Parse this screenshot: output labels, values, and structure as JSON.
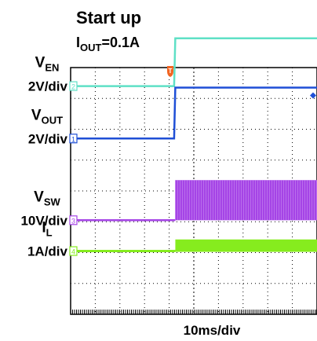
{
  "title": "Start up",
  "subtitle": {
    "main": "I",
    "sub": "OUT",
    "rest": "=0.1A"
  },
  "xlabel": "10ms/div",
  "trigger_marker": "T",
  "colors": {
    "background": "#ffffff",
    "grid": "#000000",
    "ven": "#5fe0c6",
    "vout": "#1f4fd6",
    "vsw": "#a544e6",
    "il": "#86ec1e"
  },
  "chart_data": {
    "type": "line",
    "title": "Start up",
    "x_division": "10ms/div",
    "x_divisions": 10,
    "y_divisions": 8,
    "grid": true,
    "x": [
      0,
      4.2,
      4.25,
      10
    ],
    "series": [
      {
        "id": "ven",
        "label_main": "V",
        "label_sub": "EN",
        "scale": "2V/div",
        "channel": "2",
        "color": "#5fe0c6",
        "offset_div": 3.4,
        "values_div": [
          0,
          0,
          1.55,
          1.55
        ]
      },
      {
        "id": "vout",
        "label_main": "V",
        "label_sub": "OUT",
        "scale": "2V/div",
        "channel": "1",
        "color": "#1f4fd6",
        "offset_div": 1.7,
        "values_div": [
          0,
          0,
          1.65,
          1.65
        ]
      },
      {
        "id": "vsw",
        "label_main": "V",
        "label_sub": "SW",
        "scale": "10V/div",
        "channel": "3",
        "color": "#a544e6",
        "offset_div": -0.95,
        "values_div": [
          0,
          0,
          1.3,
          1.3
        ],
        "switching": true
      },
      {
        "id": "il",
        "label_main": "I",
        "label_sub": "L",
        "scale": "1A/div",
        "channel": "4",
        "color": "#86ec1e",
        "offset_div": -1.95,
        "values_div": [
          0,
          0,
          0.3,
          0.3
        ],
        "ripple": true
      }
    ]
  }
}
